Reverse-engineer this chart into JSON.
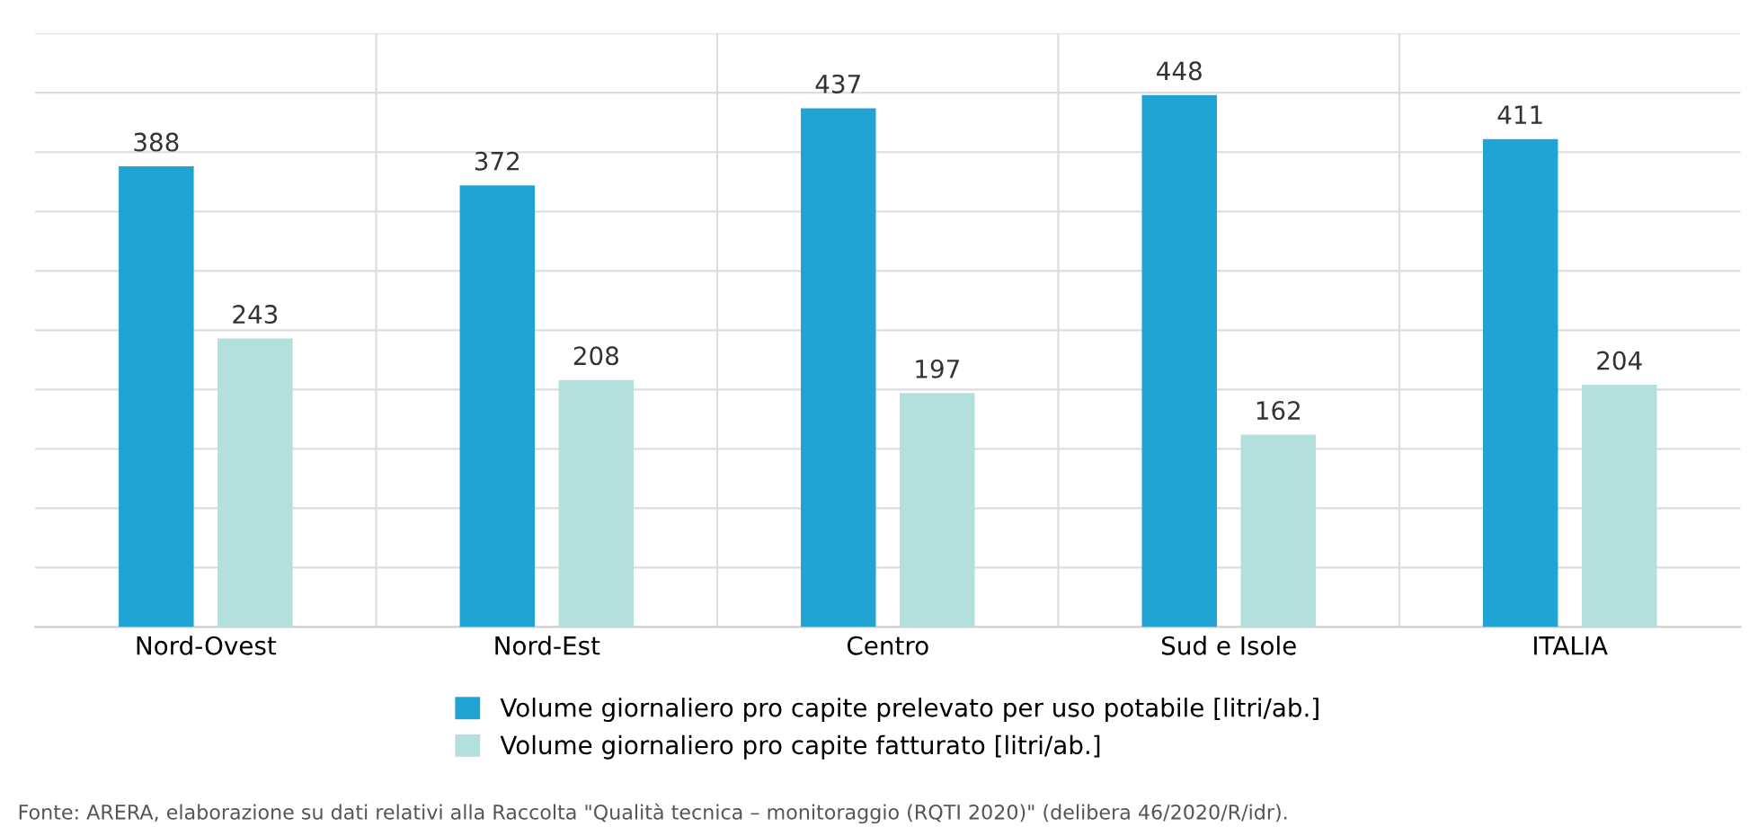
{
  "chart_data": {
    "type": "bar",
    "categories": [
      "Nord-Ovest",
      "Nord-Est",
      "Centro",
      "Sud e Isole",
      "ITALIA"
    ],
    "series": [
      {
        "name": "Volume giornaliero pro capite prelevato per uso potabile [litri/ab.]",
        "color": "#21a3d4",
        "values": [
          388,
          372,
          437,
          448,
          411
        ]
      },
      {
        "name": "Volume giornaliero pro capite fatturato [litri/ab.]",
        "color": "#b3dfdc",
        "values": [
          243,
          208,
          197,
          162,
          204
        ]
      }
    ],
    "ylim": [
      0,
      500
    ],
    "yticks": [
      {
        "value": 0,
        "label": null
      },
      {
        "value": 50,
        "label": null
      },
      {
        "value": 100,
        "label": null
      },
      {
        "value": 150,
        "label": null
      },
      {
        "value": 200,
        "label": null
      },
      {
        "value": 250,
        "label": null
      },
      {
        "value": 300,
        "label": null
      },
      {
        "value": 350,
        "label": null
      },
      {
        "value": 400,
        "label": null
      },
      {
        "value": 450,
        "label": null
      },
      {
        "value": 500,
        "label": null
      }
    ],
    "tick_labels": "x",
    "grid": true,
    "data_labels": true,
    "legend": "bottom",
    "annotations": [
      "Fonte: ARERA, elaborazione su dati relativi alla Raccolta \"Qualità tecnica – monitoraggio (RQTI 2020)\" (delibera 46/2020/R/idr)."
    ]
  }
}
